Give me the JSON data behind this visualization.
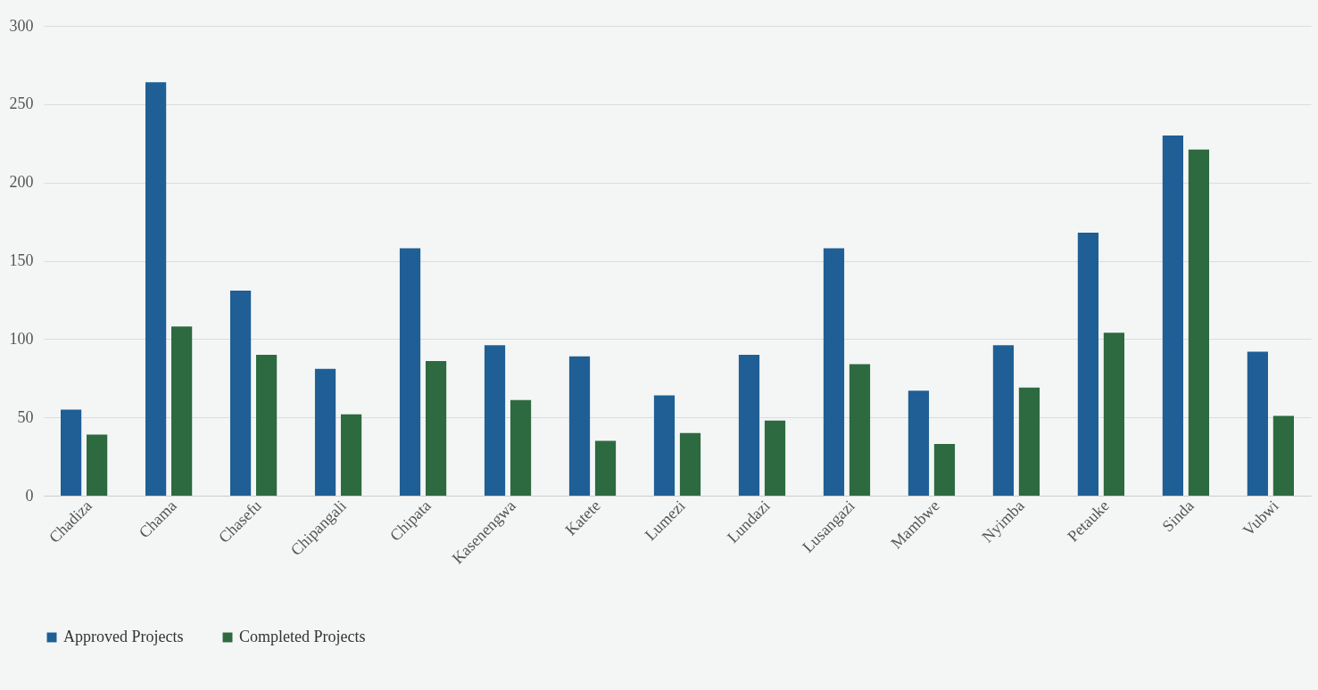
{
  "chart_data": {
    "type": "bar",
    "categories": [
      "Chadiza",
      "Chama",
      "Chasefu",
      "Chipangali",
      "Chipata",
      "Kasenengwa",
      "Katete",
      "Lumezi",
      "Lundazi",
      "Lusangazi",
      "Mambwe",
      "Nyimba",
      "Petauke",
      "Sinda",
      "Vubwi"
    ],
    "series": [
      {
        "name": "Approved Projects",
        "color": "#1f5f96",
        "values": [
          55,
          264,
          131,
          81,
          158,
          96,
          89,
          64,
          90,
          158,
          67,
          96,
          168,
          230,
          92
        ]
      },
      {
        "name": "Completed Projects",
        "color": "#2d6a40",
        "values": [
          39,
          108,
          90,
          52,
          86,
          61,
          35,
          40,
          48,
          84,
          33,
          69,
          104,
          221,
          51
        ]
      }
    ],
    "ylim": [
      0,
      300
    ],
    "yticks": [
      0,
      50,
      100,
      150,
      200,
      250,
      300
    ],
    "grid": "y",
    "legend": "bottom"
  }
}
